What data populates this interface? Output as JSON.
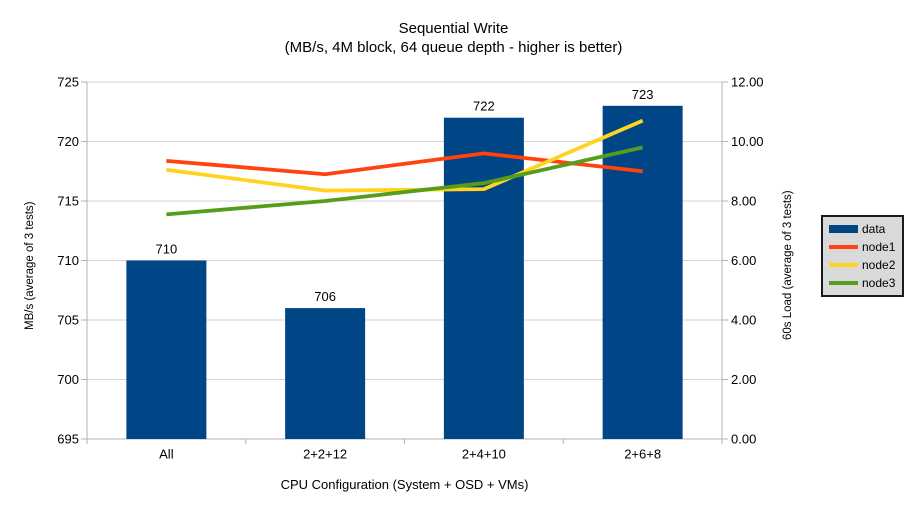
{
  "page": {
    "background": "#ffffff"
  },
  "chart_data": {
    "type": "bar+line",
    "title": "Sequential Write",
    "subtitle": "(MB/s, 4M block, 64 queue depth - higher is better)",
    "categories": [
      "All",
      "2+2+12",
      "2+4+10",
      "2+6+8"
    ],
    "x_axis_label": "CPU Configuration (System + OSD + VMs)",
    "left_axis": {
      "label": "MB/s (average of 3 tests)",
      "min": 695,
      "max": 725,
      "step": 5,
      "tick_labels": [
        "695",
        "700",
        "705",
        "710",
        "715",
        "720",
        "725"
      ]
    },
    "right_axis": {
      "label": "60s Load (average of 3 tests)",
      "min": 0,
      "max": 12,
      "step": 2,
      "tick_labels": [
        "0.00",
        "2.00",
        "4.00",
        "6.00",
        "8.00",
        "10.00",
        "12.00"
      ]
    },
    "bar_series": {
      "name": "data",
      "color": "#004586",
      "axis": "left",
      "values": [
        710,
        706,
        722,
        723
      ],
      "value_labels": [
        "710",
        "706",
        "722",
        "723"
      ]
    },
    "line_series": [
      {
        "name": "node1",
        "color": "#FF420E",
        "axis": "right",
        "values": [
          9.35,
          8.9,
          9.6,
          9.0
        ]
      },
      {
        "name": "node2",
        "color": "#FFD320",
        "axis": "right",
        "values": [
          9.05,
          8.35,
          8.4,
          10.7
        ]
      },
      {
        "name": "node3",
        "color": "#579D1C",
        "axis": "right",
        "values": [
          7.55,
          8.0,
          8.6,
          9.8
        ]
      }
    ],
    "legend_position": "right",
    "grid": "horizontal"
  },
  "colors": {
    "grid": "#d3d3d3",
    "axis": "#b3b3b3",
    "text": "#000000",
    "legend_bg": "#d9d9d9",
    "legend_border": "#1a1a1a"
  }
}
